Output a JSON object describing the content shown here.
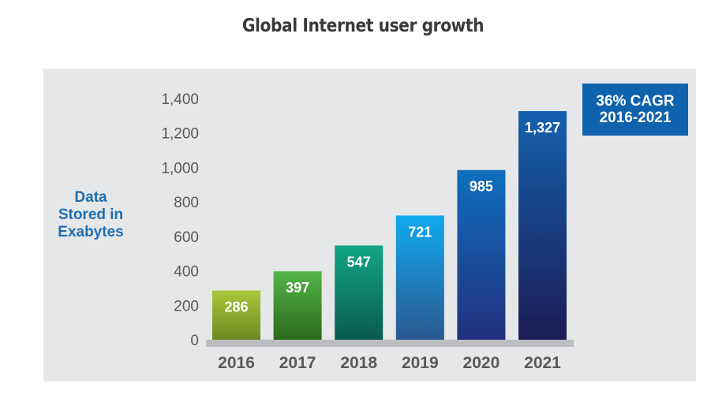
{
  "chart_data": {
    "type": "bar",
    "title": "Global Internet user growth",
    "xlabel": "",
    "ylabel": "Data Stored in Exabytes",
    "ylabel_lines": [
      "Data",
      "Stored in",
      "Exabytes"
    ],
    "categories": [
      "2016",
      "2017",
      "2018",
      "2019",
      "2020",
      "2021"
    ],
    "values": [
      286,
      397,
      547,
      721,
      985,
      1327
    ],
    "value_labels": [
      "286",
      "397",
      "547",
      "721",
      "985",
      "1,327"
    ],
    "ylim": [
      0,
      1400
    ],
    "yticks": [
      0,
      200,
      400,
      600,
      800,
      1000,
      1200,
      1400
    ],
    "ytick_labels": [
      "0",
      "200",
      "400",
      "600",
      "800",
      "1,000",
      "1,200",
      "1,400"
    ],
    "grid": false,
    "legend": null,
    "annotation": {
      "line1": "36% CAGR",
      "line2": "2016-2021"
    },
    "bar_colors": [
      {
        "top": "#a9c83a",
        "bottom": "#6f8a23"
      },
      {
        "top": "#55b449",
        "bottom": "#2a6a1a"
      },
      {
        "top": "#12a585",
        "bottom": "#0a5a52"
      },
      {
        "top": "#11a9ef",
        "bottom": "#2a5890"
      },
      {
        "top": "#0f6fbd",
        "bottom": "#22307e"
      },
      {
        "top": "#1560ad",
        "bottom": "#1b1c55"
      }
    ]
  },
  "colors": {
    "panel": "#e6e7e8",
    "axis": "#bcbdc0",
    "accent": "#0f62ac",
    "ylabel": "#1f6db3",
    "tick": "#58595b"
  }
}
